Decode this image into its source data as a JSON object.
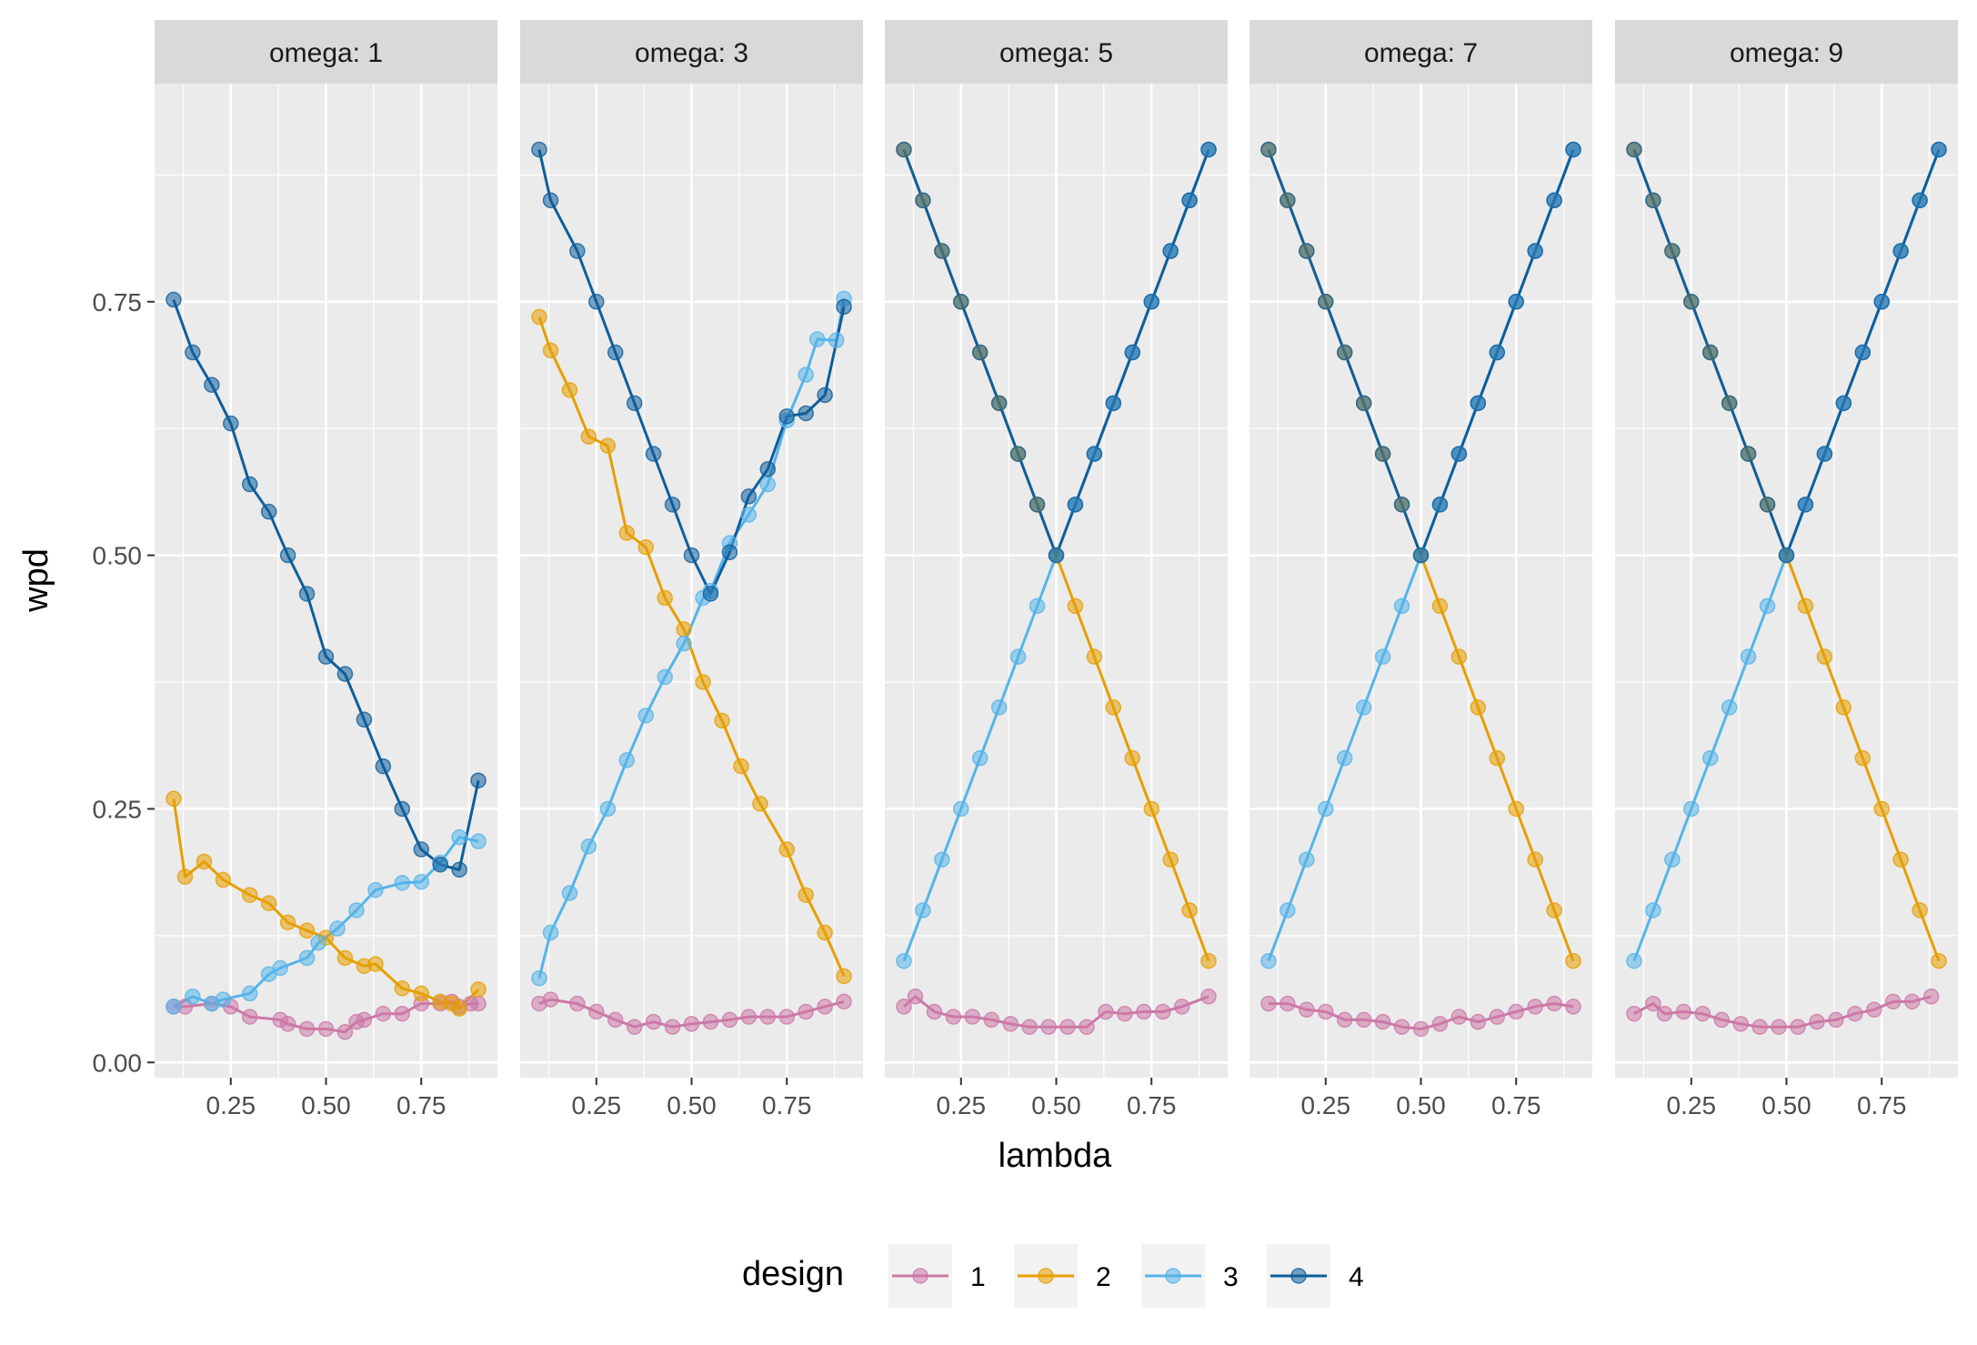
{
  "chart_data": {
    "type": "line",
    "xlabel": "lambda",
    "ylabel": "wpd",
    "xlim": [
      0.05,
      0.95
    ],
    "ylim": [
      -0.015,
      0.965
    ],
    "x_ticks": [
      0.25,
      0.5,
      0.75
    ],
    "x_tick_labels": [
      "0.25",
      "0.50",
      "0.75"
    ],
    "y_ticks": [
      0,
      0.25,
      0.5,
      0.75
    ],
    "y_tick_labels": [
      "0.00",
      "0.25",
      "0.50",
      "0.75"
    ],
    "legend": {
      "title": "design",
      "position": "bottom",
      "entries": [
        {
          "label": "1",
          "color": "#CC79A7"
        },
        {
          "label": "2",
          "color": "#E69F00"
        },
        {
          "label": "3",
          "color": "#56B4E9"
        },
        {
          "label": "4",
          "color": "#0F5E9C"
        }
      ]
    },
    "panels": [
      {
        "strip": "omega: 1",
        "series": [
          {
            "design": "1",
            "x": [
              0.1,
              0.13,
              0.2,
              0.25,
              0.3,
              0.38,
              0.4,
              0.45,
              0.5,
              0.55,
              0.58,
              0.6,
              0.65,
              0.7,
              0.75,
              0.8,
              0.83,
              0.85,
              0.88,
              0.9
            ],
            "y": [
              0.055,
              0.055,
              0.058,
              0.055,
              0.045,
              0.042,
              0.038,
              0.033,
              0.033,
              0.03,
              0.04,
              0.042,
              0.048,
              0.048,
              0.058,
              0.058,
              0.06,
              0.055,
              0.058,
              0.058
            ]
          },
          {
            "design": "2",
            "x": [
              0.1,
              0.13,
              0.18,
              0.23,
              0.3,
              0.35,
              0.4,
              0.45,
              0.5,
              0.55,
              0.6,
              0.63,
              0.7,
              0.75,
              0.8,
              0.83,
              0.85,
              0.9
            ],
            "y": [
              0.26,
              0.183,
              0.198,
              0.18,
              0.165,
              0.157,
              0.138,
              0.13,
              0.123,
              0.103,
              0.095,
              0.097,
              0.073,
              0.068,
              0.06,
              0.058,
              0.053,
              0.072
            ]
          },
          {
            "design": "3",
            "x": [
              0.1,
              0.15,
              0.2,
              0.23,
              0.3,
              0.35,
              0.38,
              0.45,
              0.48,
              0.53,
              0.58,
              0.63,
              0.7,
              0.75,
              0.8,
              0.85,
              0.9
            ],
            "y": [
              0.055,
              0.065,
              0.058,
              0.062,
              0.068,
              0.087,
              0.093,
              0.103,
              0.118,
              0.132,
              0.15,
              0.17,
              0.177,
              0.178,
              0.197,
              0.222,
              0.218
            ]
          },
          {
            "design": "4",
            "x": [
              0.1,
              0.15,
              0.2,
              0.25,
              0.3,
              0.35,
              0.4,
              0.45,
              0.5,
              0.55,
              0.6,
              0.65,
              0.7,
              0.75,
              0.8,
              0.85,
              0.9
            ],
            "y": [
              0.752,
              0.7,
              0.668,
              0.63,
              0.57,
              0.543,
              0.5,
              0.462,
              0.4,
              0.383,
              0.338,
              0.292,
              0.25,
              0.21,
              0.195,
              0.19,
              0.278
            ]
          }
        ]
      },
      {
        "strip": "omega: 3",
        "series": [
          {
            "design": "1",
            "x": [
              0.1,
              0.13,
              0.2,
              0.25,
              0.3,
              0.35,
              0.4,
              0.45,
              0.5,
              0.55,
              0.6,
              0.65,
              0.7,
              0.75,
              0.8,
              0.85,
              0.9
            ],
            "y": [
              0.058,
              0.062,
              0.058,
              0.05,
              0.042,
              0.035,
              0.04,
              0.035,
              0.038,
              0.04,
              0.042,
              0.045,
              0.045,
              0.045,
              0.05,
              0.055,
              0.06
            ]
          },
          {
            "design": "2",
            "x": [
              0.1,
              0.13,
              0.18,
              0.23,
              0.28,
              0.33,
              0.38,
              0.43,
              0.48,
              0.53,
              0.58,
              0.63,
              0.68,
              0.75,
              0.8,
              0.85,
              0.9
            ],
            "y": [
              0.735,
              0.702,
              0.663,
              0.617,
              0.608,
              0.522,
              0.508,
              0.458,
              0.427,
              0.375,
              0.337,
              0.292,
              0.255,
              0.21,
              0.165,
              0.128,
              0.085
            ]
          },
          {
            "design": "3",
            "x": [
              0.1,
              0.13,
              0.18,
              0.23,
              0.28,
              0.33,
              0.38,
              0.43,
              0.48,
              0.53,
              0.55,
              0.6,
              0.65,
              0.7,
              0.75,
              0.8,
              0.83,
              0.88,
              0.9
            ],
            "y": [
              0.083,
              0.128,
              0.167,
              0.213,
              0.25,
              0.298,
              0.342,
              0.38,
              0.413,
              0.458,
              0.465,
              0.512,
              0.54,
              0.57,
              0.633,
              0.678,
              0.713,
              0.712,
              0.753
            ]
          },
          {
            "design": "4",
            "x": [
              0.1,
              0.13,
              0.2,
              0.25,
              0.3,
              0.35,
              0.4,
              0.45,
              0.5,
              0.55,
              0.6,
              0.65,
              0.7,
              0.75,
              0.8,
              0.85,
              0.9
            ],
            "y": [
              0.9,
              0.85,
              0.8,
              0.75,
              0.7,
              0.65,
              0.6,
              0.55,
              0.5,
              0.462,
              0.503,
              0.558,
              0.585,
              0.637,
              0.64,
              0.658,
              0.745
            ]
          }
        ]
      },
      {
        "strip": "omega: 5",
        "series": [
          {
            "design": "1",
            "x": [
              0.1,
              0.13,
              0.18,
              0.23,
              0.28,
              0.33,
              0.38,
              0.43,
              0.48,
              0.53,
              0.58,
              0.63,
              0.68,
              0.73,
              0.78,
              0.83,
              0.9
            ],
            "y": [
              0.055,
              0.065,
              0.05,
              0.045,
              0.045,
              0.042,
              0.038,
              0.035,
              0.035,
              0.035,
              0.035,
              0.05,
              0.048,
              0.05,
              0.05,
              0.055,
              0.065
            ]
          },
          {
            "design": "2",
            "x": [
              0.1,
              0.15,
              0.2,
              0.25,
              0.3,
              0.35,
              0.4,
              0.45,
              0.5,
              0.55,
              0.6,
              0.65,
              0.7,
              0.75,
              0.8,
              0.85,
              0.9
            ],
            "y": [
              0.9,
              0.85,
              0.8,
              0.75,
              0.7,
              0.65,
              0.6,
              0.55,
              0.5,
              0.45,
              0.4,
              0.35,
              0.3,
              0.25,
              0.2,
              0.15,
              0.1
            ]
          },
          {
            "design": "3",
            "x": [
              0.1,
              0.15,
              0.2,
              0.25,
              0.3,
              0.35,
              0.4,
              0.45,
              0.5,
              0.55,
              0.6,
              0.65,
              0.7,
              0.75,
              0.8,
              0.85,
              0.9
            ],
            "y": [
              0.1,
              0.15,
              0.2,
              0.25,
              0.3,
              0.35,
              0.4,
              0.45,
              0.5,
              0.55,
              0.6,
              0.65,
              0.7,
              0.75,
              0.8,
              0.85,
              0.9
            ]
          },
          {
            "design": "4",
            "x": [
              0.1,
              0.15,
              0.2,
              0.25,
              0.3,
              0.35,
              0.4,
              0.45,
              0.5,
              0.55,
              0.6,
              0.65,
              0.7,
              0.75,
              0.8,
              0.85,
              0.9
            ],
            "y": [
              0.9,
              0.85,
              0.8,
              0.75,
              0.7,
              0.65,
              0.6,
              0.55,
              0.5,
              0.55,
              0.6,
              0.65,
              0.7,
              0.75,
              0.8,
              0.85,
              0.9
            ]
          }
        ]
      },
      {
        "strip": "omega: 7",
        "series": [
          {
            "design": "1",
            "x": [
              0.1,
              0.15,
              0.2,
              0.25,
              0.3,
              0.35,
              0.4,
              0.45,
              0.5,
              0.55,
              0.6,
              0.65,
              0.7,
              0.75,
              0.8,
              0.85,
              0.9
            ],
            "y": [
              0.058,
              0.058,
              0.052,
              0.05,
              0.042,
              0.042,
              0.04,
              0.035,
              0.033,
              0.038,
              0.045,
              0.04,
              0.045,
              0.05,
              0.055,
              0.058,
              0.055
            ]
          },
          {
            "design": "2",
            "x": [
              0.1,
              0.15,
              0.2,
              0.25,
              0.3,
              0.35,
              0.4,
              0.45,
              0.5,
              0.55,
              0.6,
              0.65,
              0.7,
              0.75,
              0.8,
              0.85,
              0.9
            ],
            "y": [
              0.9,
              0.85,
              0.8,
              0.75,
              0.7,
              0.65,
              0.6,
              0.55,
              0.5,
              0.45,
              0.4,
              0.35,
              0.3,
              0.25,
              0.2,
              0.15,
              0.1
            ]
          },
          {
            "design": "3",
            "x": [
              0.1,
              0.15,
              0.2,
              0.25,
              0.3,
              0.35,
              0.4,
              0.45,
              0.5,
              0.55,
              0.6,
              0.65,
              0.7,
              0.75,
              0.8,
              0.85,
              0.9
            ],
            "y": [
              0.1,
              0.15,
              0.2,
              0.25,
              0.3,
              0.35,
              0.4,
              0.45,
              0.5,
              0.55,
              0.6,
              0.65,
              0.7,
              0.75,
              0.8,
              0.85,
              0.9
            ]
          },
          {
            "design": "4",
            "x": [
              0.1,
              0.15,
              0.2,
              0.25,
              0.3,
              0.35,
              0.4,
              0.45,
              0.5,
              0.55,
              0.6,
              0.65,
              0.7,
              0.75,
              0.8,
              0.85,
              0.9
            ],
            "y": [
              0.9,
              0.85,
              0.8,
              0.75,
              0.7,
              0.65,
              0.6,
              0.55,
              0.5,
              0.55,
              0.6,
              0.65,
              0.7,
              0.75,
              0.8,
              0.85,
              0.9
            ]
          }
        ]
      },
      {
        "strip": "omega: 9",
        "series": [
          {
            "design": "1",
            "x": [
              0.1,
              0.15,
              0.18,
              0.23,
              0.28,
              0.33,
              0.38,
              0.43,
              0.48,
              0.53,
              0.58,
              0.63,
              0.68,
              0.73,
              0.78,
              0.83,
              0.88
            ],
            "y": [
              0.048,
              0.058,
              0.048,
              0.05,
              0.048,
              0.042,
              0.038,
              0.035,
              0.035,
              0.035,
              0.04,
              0.042,
              0.048,
              0.052,
              0.06,
              0.06,
              0.065
            ]
          },
          {
            "design": "2",
            "x": [
              0.1,
              0.15,
              0.2,
              0.25,
              0.3,
              0.35,
              0.4,
              0.45,
              0.5,
              0.55,
              0.6,
              0.65,
              0.7,
              0.75,
              0.8,
              0.85,
              0.9
            ],
            "y": [
              0.9,
              0.85,
              0.8,
              0.75,
              0.7,
              0.65,
              0.6,
              0.55,
              0.5,
              0.45,
              0.4,
              0.35,
              0.3,
              0.25,
              0.2,
              0.15,
              0.1
            ]
          },
          {
            "design": "3",
            "x": [
              0.1,
              0.15,
              0.2,
              0.25,
              0.3,
              0.35,
              0.4,
              0.45,
              0.5,
              0.55,
              0.6,
              0.65,
              0.7,
              0.75,
              0.8,
              0.85,
              0.9
            ],
            "y": [
              0.1,
              0.15,
              0.2,
              0.25,
              0.3,
              0.35,
              0.4,
              0.45,
              0.5,
              0.55,
              0.6,
              0.65,
              0.7,
              0.75,
              0.8,
              0.85,
              0.9
            ]
          },
          {
            "design": "4",
            "x": [
              0.1,
              0.15,
              0.2,
              0.25,
              0.3,
              0.35,
              0.4,
              0.45,
              0.5,
              0.55,
              0.6,
              0.65,
              0.7,
              0.75,
              0.8,
              0.85,
              0.9
            ],
            "y": [
              0.9,
              0.85,
              0.8,
              0.75,
              0.7,
              0.65,
              0.6,
              0.55,
              0.5,
              0.55,
              0.6,
              0.65,
              0.7,
              0.75,
              0.8,
              0.85,
              0.9
            ]
          }
        ]
      }
    ]
  },
  "style": {
    "panel_bg": "#EBEBEB",
    "strip_bg": "#D9D9D9",
    "grid_color": "#FFFFFF",
    "tick_color": "#333333"
  }
}
